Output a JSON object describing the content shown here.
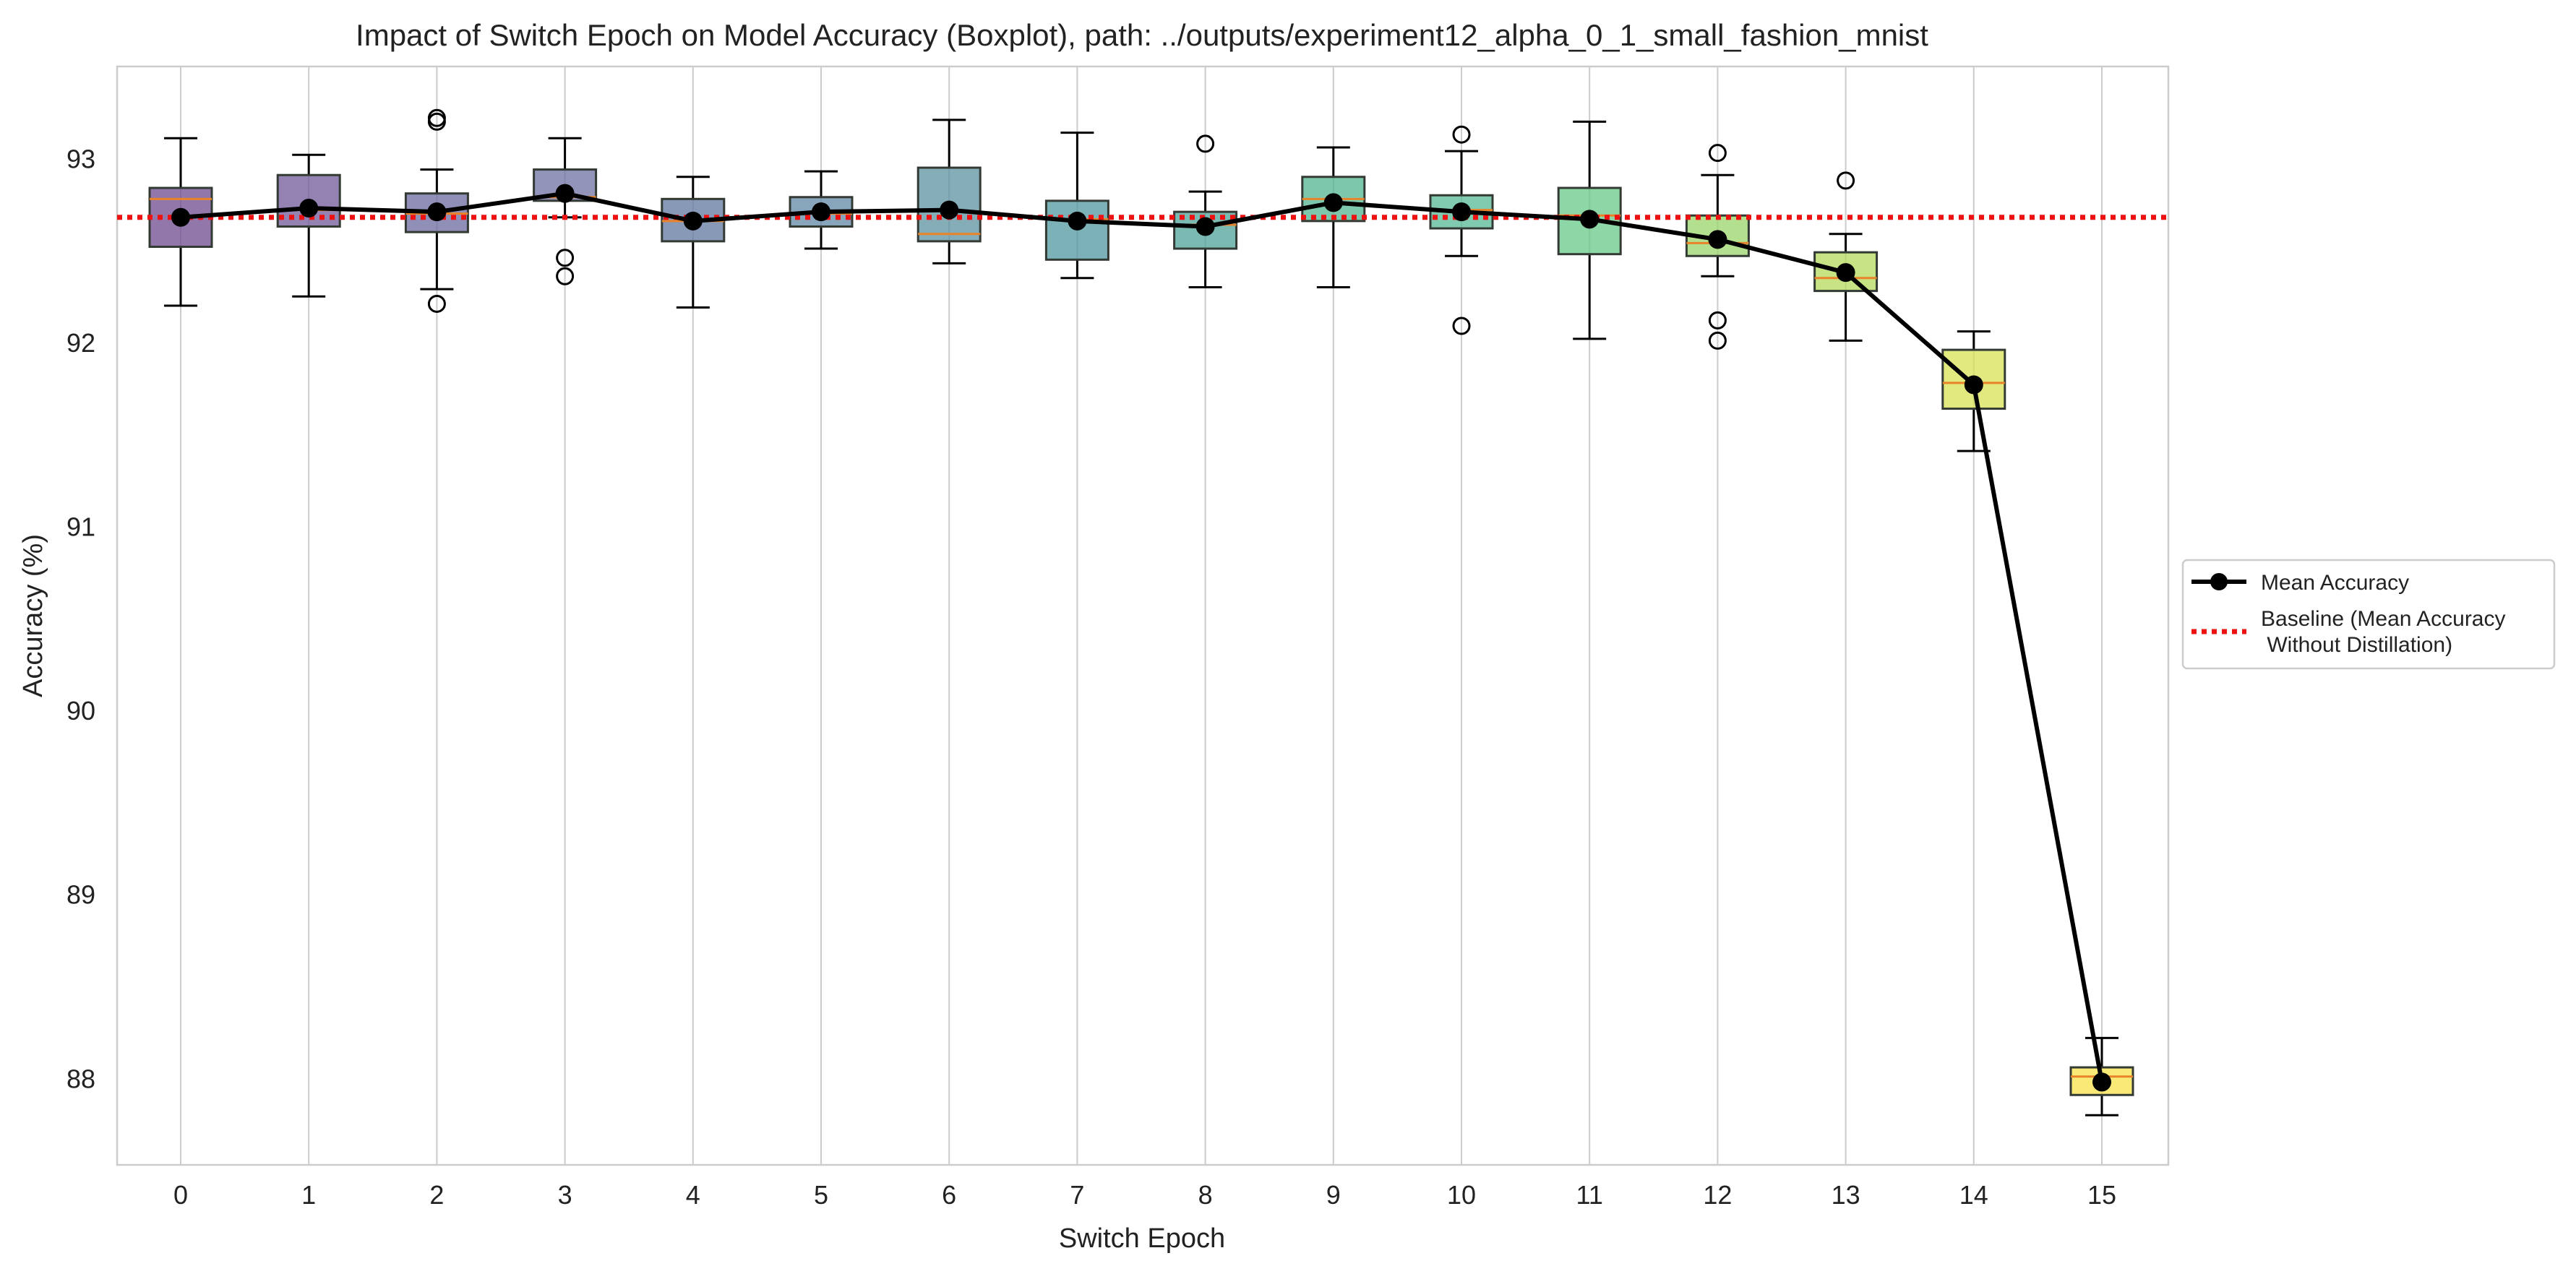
{
  "chart_data": {
    "type": "boxplot",
    "title": "Impact of Switch Epoch on Model Accuracy (Boxplot), path: ../outputs/experiment12_alpha_0_1_small_fashion_mnist",
    "xlabel": "Switch Epoch",
    "ylabel": "Accuracy (%)",
    "categories": [
      "0",
      "1",
      "2",
      "3",
      "4",
      "5",
      "6",
      "7",
      "8",
      "9",
      "10",
      "11",
      "12",
      "13",
      "14",
      "15"
    ],
    "ylim": [
      87.53,
      93.5
    ],
    "yticks": [
      88,
      89,
      90,
      91,
      92,
      93
    ],
    "ytick_labels": [
      "88",
      "89",
      "90",
      "91",
      "92",
      "93"
    ],
    "grid": "vertical",
    "baseline": 92.68,
    "boxes": [
      {
        "q1": 92.52,
        "median": 92.78,
        "q3": 92.84,
        "whislo": 92.2,
        "whishi": 93.11,
        "mean": 92.68,
        "fliers": []
      },
      {
        "q1": 92.63,
        "median": 92.72,
        "q3": 92.91,
        "whislo": 92.25,
        "whishi": 93.02,
        "mean": 92.73,
        "fliers": []
      },
      {
        "q1": 92.6,
        "median": 92.7,
        "q3": 92.81,
        "whislo": 92.29,
        "whishi": 92.94,
        "mean": 92.71,
        "fliers": [
          92.21,
          93.2,
          93.22
        ]
      },
      {
        "q1": 92.77,
        "median": 92.79,
        "q3": 92.94,
        "whislo": 92.68,
        "whishi": 93.11,
        "mean": 92.81,
        "fliers": [
          92.46,
          92.36
        ]
      },
      {
        "q1": 92.55,
        "median": 92.66,
        "q3": 92.78,
        "whislo": 92.19,
        "whishi": 92.9,
        "mean": 92.66,
        "fliers": []
      },
      {
        "q1": 92.63,
        "median": 92.7,
        "q3": 92.79,
        "whislo": 92.51,
        "whishi": 92.93,
        "mean": 92.71,
        "fliers": []
      },
      {
        "q1": 92.55,
        "median": 92.59,
        "q3": 92.95,
        "whislo": 92.43,
        "whishi": 93.21,
        "mean": 92.72,
        "fliers": []
      },
      {
        "q1": 92.45,
        "median": 92.67,
        "q3": 92.77,
        "whislo": 92.35,
        "whishi": 93.14,
        "mean": 92.66,
        "fliers": []
      },
      {
        "q1": 92.51,
        "median": 92.64,
        "q3": 92.71,
        "whislo": 92.3,
        "whishi": 92.82,
        "mean": 92.63,
        "fliers": [
          93.08
        ]
      },
      {
        "q1": 92.66,
        "median": 92.78,
        "q3": 92.9,
        "whislo": 92.3,
        "whishi": 93.06,
        "mean": 92.76,
        "fliers": []
      },
      {
        "q1": 92.62,
        "median": 92.72,
        "q3": 92.8,
        "whislo": 92.47,
        "whishi": 93.04,
        "mean": 92.71,
        "fliers": [
          92.09,
          93.13
        ]
      },
      {
        "q1": 92.48,
        "median": 92.69,
        "q3": 92.84,
        "whislo": 92.02,
        "whishi": 93.2,
        "mean": 92.67,
        "fliers": []
      },
      {
        "q1": 92.47,
        "median": 92.54,
        "q3": 92.69,
        "whislo": 92.36,
        "whishi": 92.91,
        "mean": 92.56,
        "fliers": [
          92.12,
          92.01,
          93.03
        ]
      },
      {
        "q1": 92.28,
        "median": 92.35,
        "q3": 92.49,
        "whislo": 92.01,
        "whishi": 92.59,
        "mean": 92.38,
        "fliers": [
          92.88
        ]
      },
      {
        "q1": 91.64,
        "median": 91.78,
        "q3": 91.96,
        "whislo": 91.41,
        "whishi": 92.06,
        "mean": 91.77,
        "fliers": []
      },
      {
        "q1": 87.91,
        "median": 88.01,
        "q3": 88.06,
        "whislo": 87.8,
        "whishi": 88.22,
        "mean": 87.98,
        "fliers": []
      }
    ],
    "box_colors": [
      "#6d4a8e",
      "#6f5898",
      "#6b6aa0",
      "#6e70a3",
      "#60779f",
      "#5f88a4",
      "#5b91a0",
      "#4f979f",
      "#4ea39a",
      "#51b592",
      "#55b995",
      "#67c887",
      "#9ad56a",
      "#b6da5b",
      "#d8e153",
      "#f7e34a"
    ],
    "median_color": "#e8832a",
    "mean_series": {
      "label": "Mean Accuracy",
      "color": "#000000"
    },
    "baseline_series": {
      "label": "Baseline (Mean Accuracy\n Without Distillation)",
      "color": "#ee1111"
    },
    "legend": "right-center"
  }
}
